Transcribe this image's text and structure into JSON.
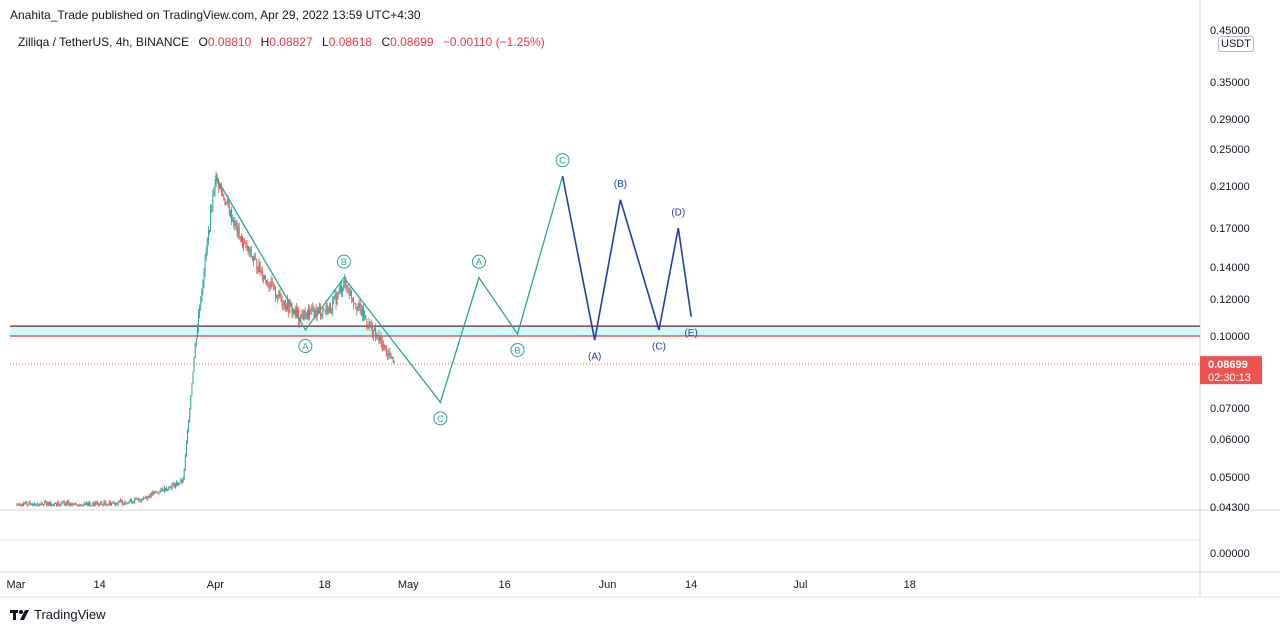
{
  "header": {
    "text": "Anahita_Trade published on TradingView.com, Apr 29, 2022 13:59 UTC+4:30"
  },
  "legend": {
    "symbol": "Zilliqa / TetherUS, 4h, BINANCE",
    "open_label": "O",
    "open": "0.08810",
    "high_label": "H",
    "high": "0.08827",
    "low_label": "L",
    "low": "0.08618",
    "close_label": "C",
    "close": "0.08699",
    "change": "−0.00110 (−1.25%)"
  },
  "price_axis": {
    "unit": "USDT",
    "ticks": [
      "0.45000",
      "0.35000",
      "0.29000",
      "0.25000",
      "0.21000",
      "0.17000",
      "0.14000",
      "0.12000",
      "0.10000",
      "0.07000",
      "0.06000",
      "0.05000",
      "0.04300",
      "0.00000"
    ],
    "last_price": "0.08699",
    "countdown": "02:30:13"
  },
  "time_axis": {
    "ticks": [
      "Mar",
      "14",
      "Apr",
      "18",
      "May",
      "16",
      "Jun",
      "14",
      "Jul",
      "18"
    ]
  },
  "footer": {
    "brand": "TradingView"
  },
  "colors": {
    "bull": "#26a69a",
    "bear": "#ef5350",
    "wave_green": "#26a69a",
    "wave_blue": "#1e40af",
    "zone_fill": "#ccfbfb",
    "zone_top": "#7f1d1d",
    "zone_bottom": "#e53935",
    "last_price_bg": "#ef5350"
  },
  "chart_data": {
    "type": "candlestick",
    "symbol": "Zilliqa / TetherUS",
    "interval": "4h",
    "exchange": "BINANCE",
    "y_scale": "log",
    "ylim": [
      0.043,
      0.45
    ],
    "x_range": [
      "2022-03-01",
      "2022-07-25"
    ],
    "last_price": 0.08699,
    "support_zone": [
      0.1,
      0.105
    ],
    "price_path": [
      {
        "date": "2022-03-01",
        "price": 0.043
      },
      {
        "date": "2022-03-10",
        "price": 0.043
      },
      {
        "date": "2022-03-20",
        "price": 0.0445
      },
      {
        "date": "2022-03-27",
        "price": 0.049
      },
      {
        "date": "2022-03-29",
        "price": 0.1
      },
      {
        "date": "2022-04-01",
        "price": 0.22
      },
      {
        "date": "2022-04-05",
        "price": 0.16
      },
      {
        "date": "2022-04-10",
        "price": 0.125
      },
      {
        "date": "2022-04-14",
        "price": 0.11
      },
      {
        "date": "2022-04-19",
        "price": 0.115
      },
      {
        "date": "2022-04-21",
        "price": 0.13
      },
      {
        "date": "2022-04-25",
        "price": 0.105
      },
      {
        "date": "2022-04-29",
        "price": 0.087
      }
    ],
    "wave_projection": [
      {
        "label": "",
        "date": "2022-04-01",
        "price": 0.22
      },
      {
        "label": "A",
        "date": "2022-04-15",
        "price": 0.103
      },
      {
        "label": "B",
        "date": "2022-04-21",
        "price": 0.133
      },
      {
        "label": "C",
        "date": "2022-05-06",
        "price": 0.072
      },
      {
        "label": "A",
        "date": "2022-05-12",
        "price": 0.133
      },
      {
        "label": "B",
        "date": "2022-05-18",
        "price": 0.101
      },
      {
        "label": "C",
        "date": "2022-05-25",
        "price": 0.22
      },
      {
        "label": "(A)",
        "date": "2022-05-30",
        "price": 0.098
      },
      {
        "label": "(B)",
        "date": "2022-06-03",
        "price": 0.196
      },
      {
        "label": "(C)",
        "date": "2022-06-09",
        "price": 0.103
      },
      {
        "label": "(D)",
        "date": "2022-06-12",
        "price": 0.17
      },
      {
        "label": "(E)",
        "date": "2022-06-14",
        "price": 0.11
      }
    ]
  }
}
